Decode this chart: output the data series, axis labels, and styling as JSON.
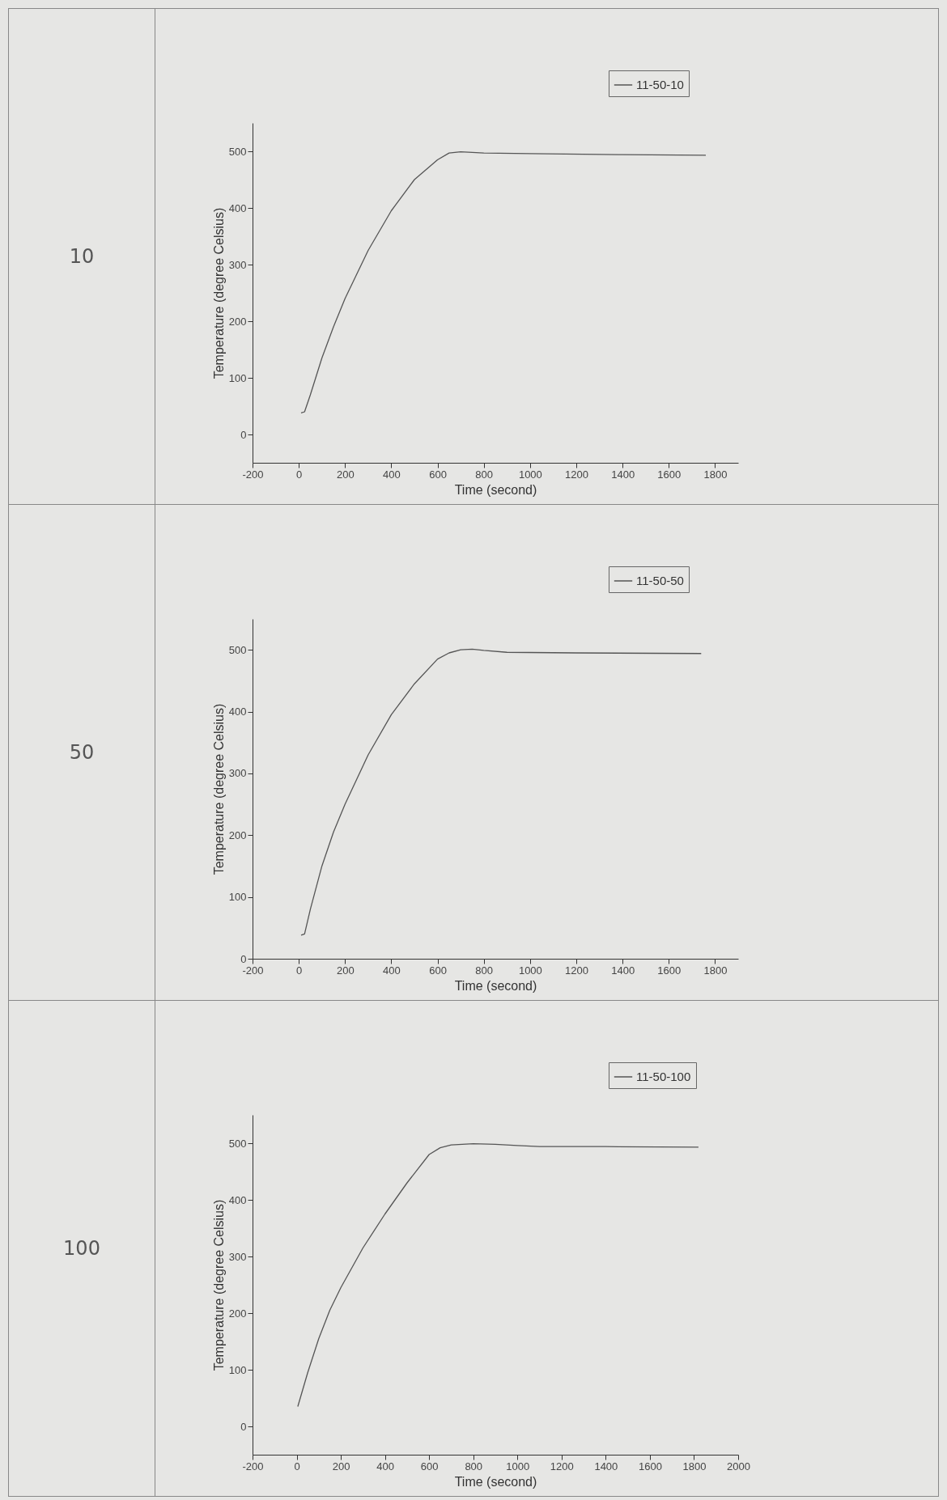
{
  "chart_data": [
    {
      "type": "line",
      "annotations": [
        "10"
      ],
      "xlabel": "Time (second)",
      "ylabel": "Temperature (degree Celsius)",
      "xlim": [
        -200,
        1900
      ],
      "xticks": [
        -200,
        0,
        200,
        400,
        600,
        800,
        1000,
        1200,
        1400,
        1600,
        1800
      ],
      "ylim": [
        -50,
        550
      ],
      "yticks": [
        0,
        100,
        200,
        300,
        400,
        500
      ],
      "grid": false,
      "legend": "top right",
      "line_style": "solid",
      "series": [
        {
          "name": "11-50-10",
          "color": "#555555",
          "x": [
            10,
            25,
            50,
            100,
            150,
            200,
            300,
            400,
            500,
            600,
            650,
            700,
            800,
            1000,
            1400,
            1760
          ],
          "values": [
            38,
            40,
            70,
            135,
            190,
            240,
            325,
            395,
            450,
            485,
            497,
            499,
            497,
            496,
            494,
            493
          ]
        }
      ]
    },
    {
      "type": "line",
      "annotations": [
        "50"
      ],
      "xlabel": "Time (second)",
      "ylabel": "Temperature (degree Celsius)",
      "xlim": [
        -200,
        1900
      ],
      "xticks": [
        -200,
        0,
        200,
        400,
        600,
        800,
        1000,
        1200,
        1400,
        1600,
        1800
      ],
      "ylim": [
        0,
        550
      ],
      "yticks": [
        0,
        100,
        200,
        300,
        400,
        500
      ],
      "grid": false,
      "legend": "top right",
      "line_style": "solid",
      "series": [
        {
          "name": "11-50-50",
          "color": "#555555",
          "x": [
            10,
            25,
            50,
            100,
            150,
            200,
            300,
            400,
            500,
            600,
            650,
            700,
            750,
            800,
            900,
            1200,
            1740
          ],
          "values": [
            38,
            40,
            80,
            150,
            205,
            250,
            330,
            395,
            445,
            485,
            495,
            500,
            501,
            499,
            496,
            495,
            494
          ]
        }
      ]
    },
    {
      "type": "line",
      "annotations": [
        "100"
      ],
      "xlabel": "Time (second)",
      "ylabel": "Temperature (degree Celsius)",
      "xlim": [
        -200,
        2000
      ],
      "xticks": [
        -200,
        0,
        200,
        400,
        600,
        800,
        1000,
        1200,
        1400,
        1600,
        1800,
        2000
      ],
      "ylim": [
        -50,
        550
      ],
      "yticks": [
        0,
        100,
        200,
        300,
        400,
        500
      ],
      "grid": false,
      "legend": "top right",
      "line_style": "solid",
      "series": [
        {
          "name": "11-50-100",
          "color": "#555555",
          "x": [
            5,
            50,
            100,
            150,
            200,
            300,
            400,
            500,
            600,
            650,
            700,
            800,
            900,
            1000,
            1100,
            1400,
            1820
          ],
          "values": [
            35,
            95,
            155,
            205,
            245,
            315,
            375,
            430,
            480,
            492,
            497,
            499,
            498,
            496,
            494,
            494,
            493
          ]
        }
      ]
    }
  ]
}
